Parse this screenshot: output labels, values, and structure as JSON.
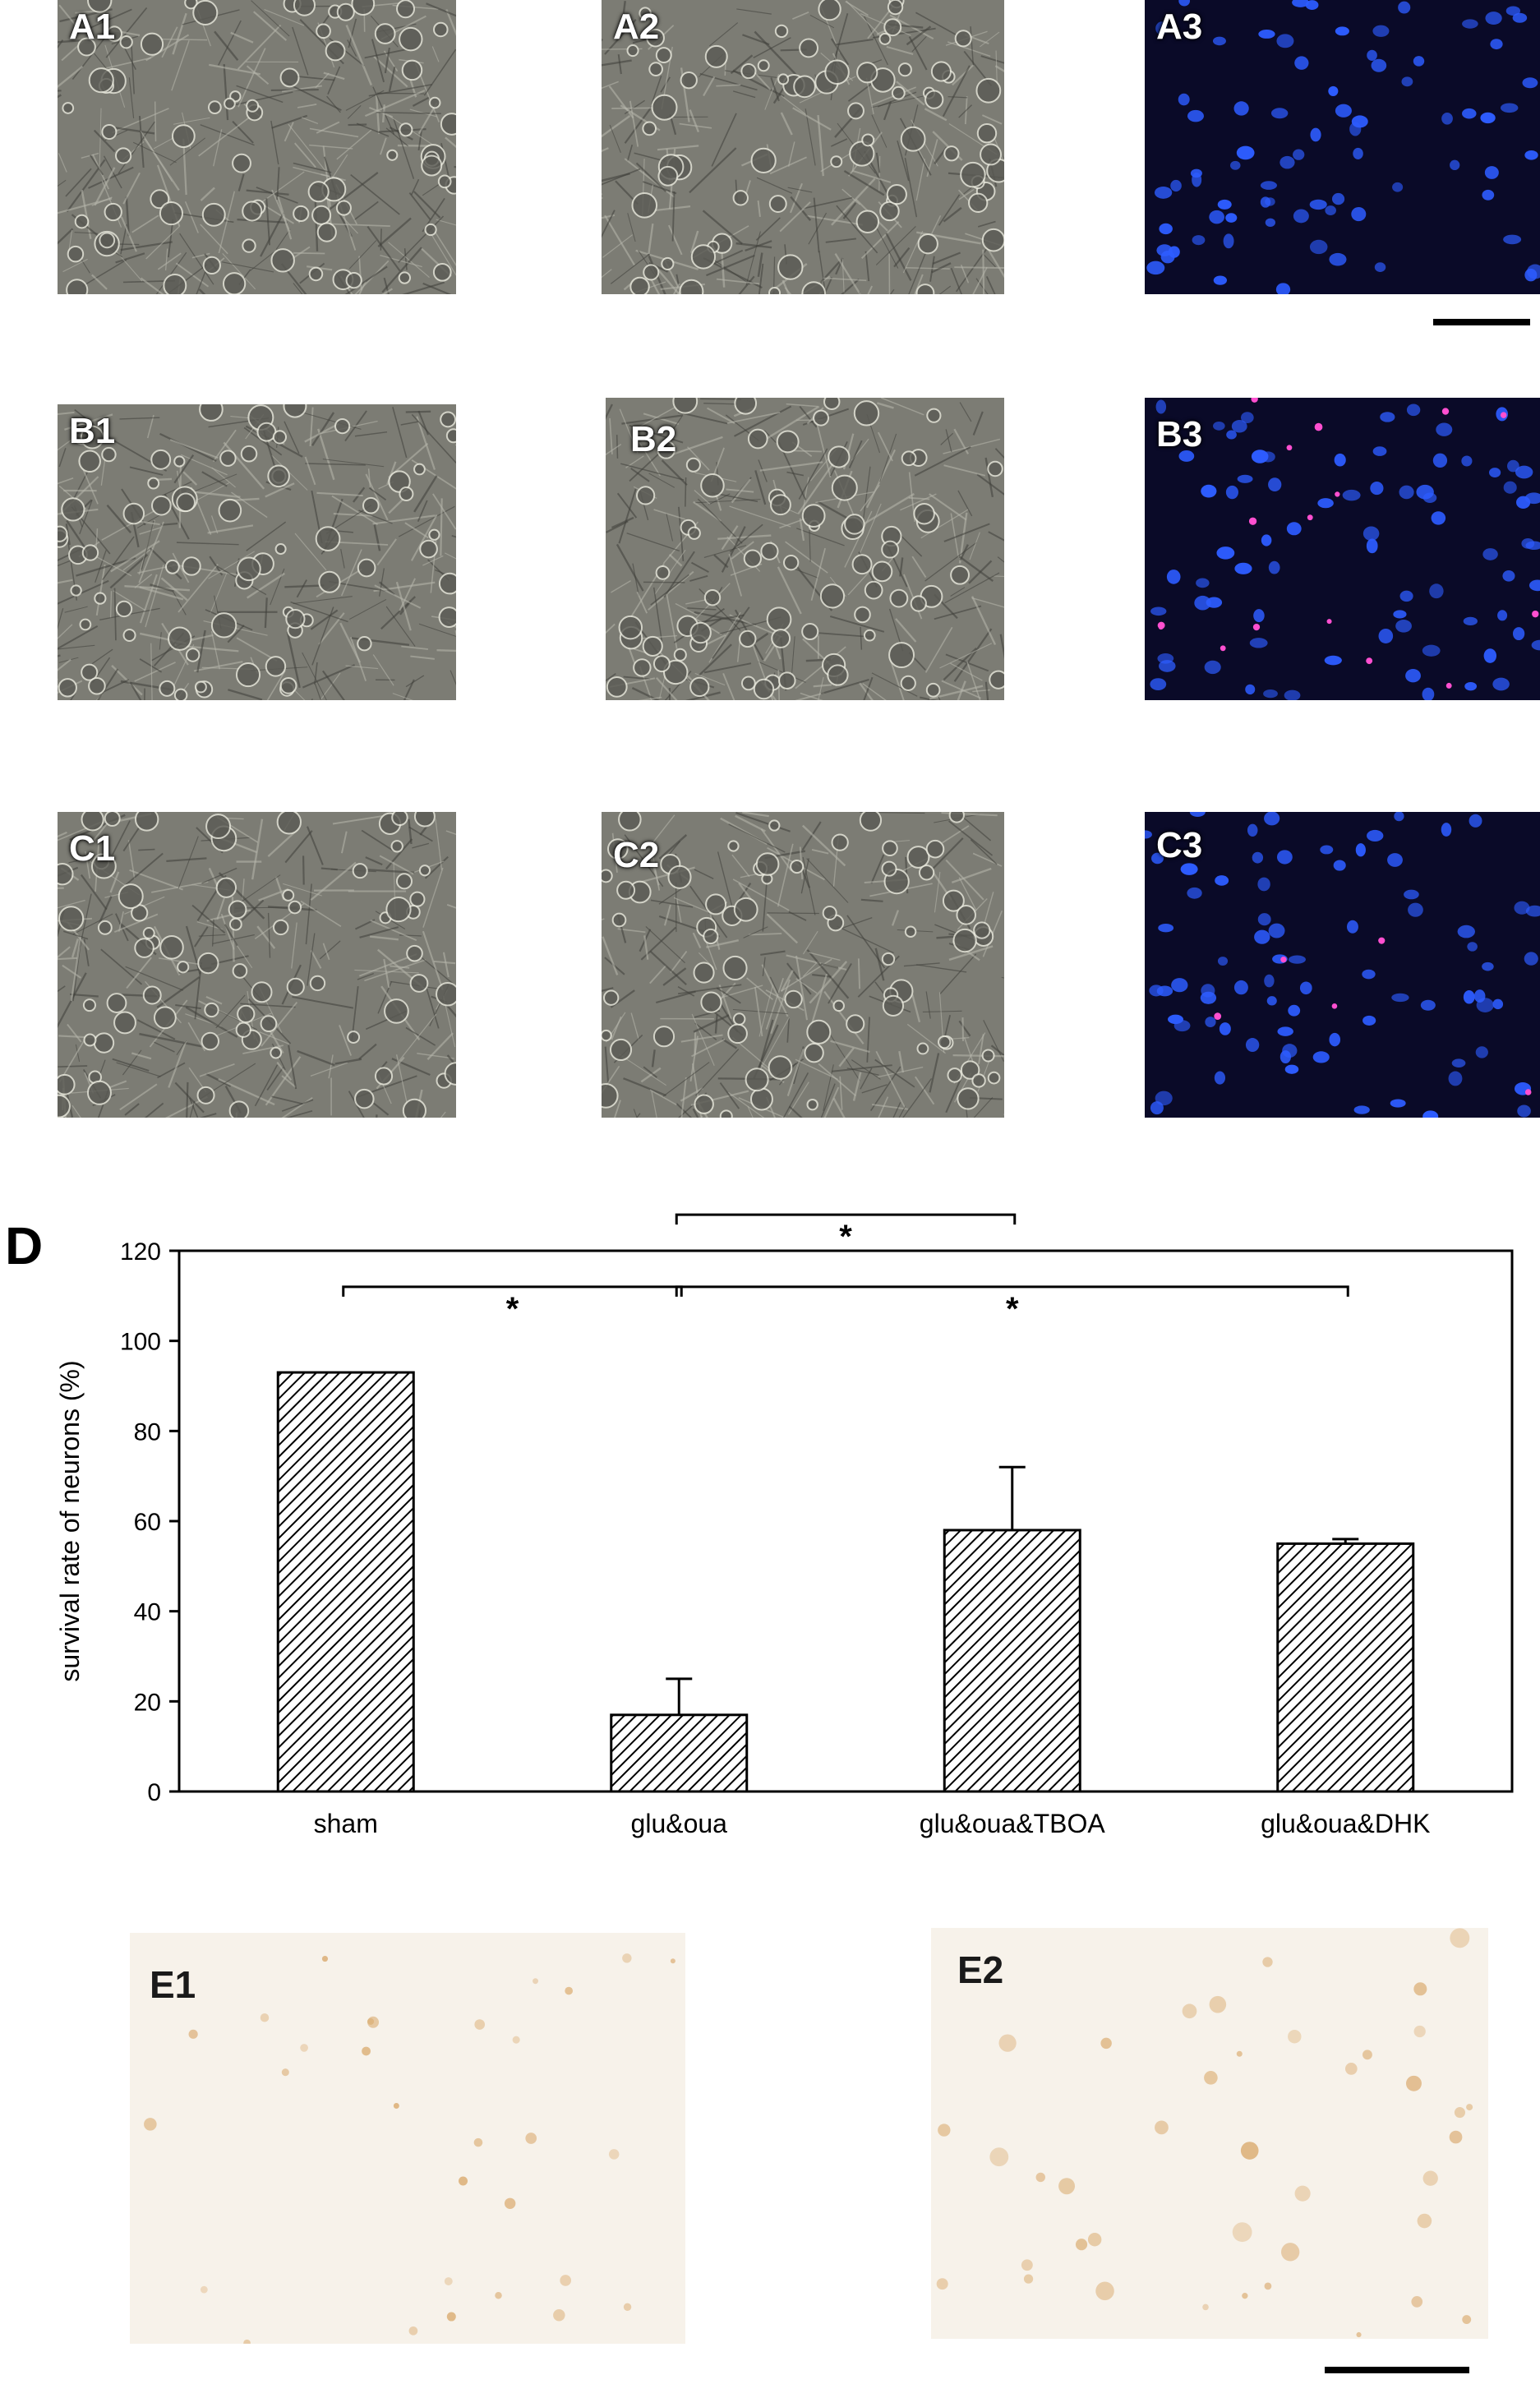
{
  "panels": [
    {
      "id": "A1",
      "label": "A1",
      "kind": "phase"
    },
    {
      "id": "A2",
      "label": "A2",
      "kind": "phase"
    },
    {
      "id": "A3",
      "label": "A3",
      "kind": "fluor"
    },
    {
      "id": "B1",
      "label": "B1",
      "kind": "phase"
    },
    {
      "id": "B2",
      "label": "B2",
      "kind": "phase"
    },
    {
      "id": "B3",
      "label": "B3",
      "kind": "fluor"
    },
    {
      "id": "C1",
      "label": "C1",
      "kind": "phase"
    },
    {
      "id": "C2",
      "label": "C2",
      "kind": "phase"
    },
    {
      "id": "C3",
      "label": "C3",
      "kind": "fluor"
    },
    {
      "id": "E1",
      "label": "E1",
      "kind": "stain"
    },
    {
      "id": "E2",
      "label": "E2",
      "kind": "stain"
    }
  ],
  "colors": {
    "phase_bg": "#7c7c74",
    "fluor_bg": "#0a0a28",
    "fluor_nucleus": "#2d5cff",
    "fluor_dead": "#ff4fd0",
    "stain_bg": "#f7f2ea",
    "stain_cell": "#d9a86a",
    "bar_hatch": "#000000"
  },
  "chart_label": "D",
  "chart_data": {
    "type": "bar",
    "categories": [
      "sham",
      "glu&oua",
      "glu&oua&TBOA",
      "glu&oua&DHK"
    ],
    "values": [
      93,
      17,
      58,
      55
    ],
    "errors": [
      0,
      8,
      14,
      1
    ],
    "ylabel": "survival rate of neurons (%)",
    "ylim": [
      0,
      120
    ],
    "yticks": [
      0,
      20,
      40,
      60,
      80,
      100,
      120
    ],
    "pattern": "diagonal-hatch",
    "significance": [
      {
        "from": 0,
        "to": 1,
        "label": "*"
      },
      {
        "from": 1,
        "to": 3,
        "label": "*"
      },
      {
        "from": 1,
        "to": 2,
        "label": "*"
      }
    ]
  }
}
